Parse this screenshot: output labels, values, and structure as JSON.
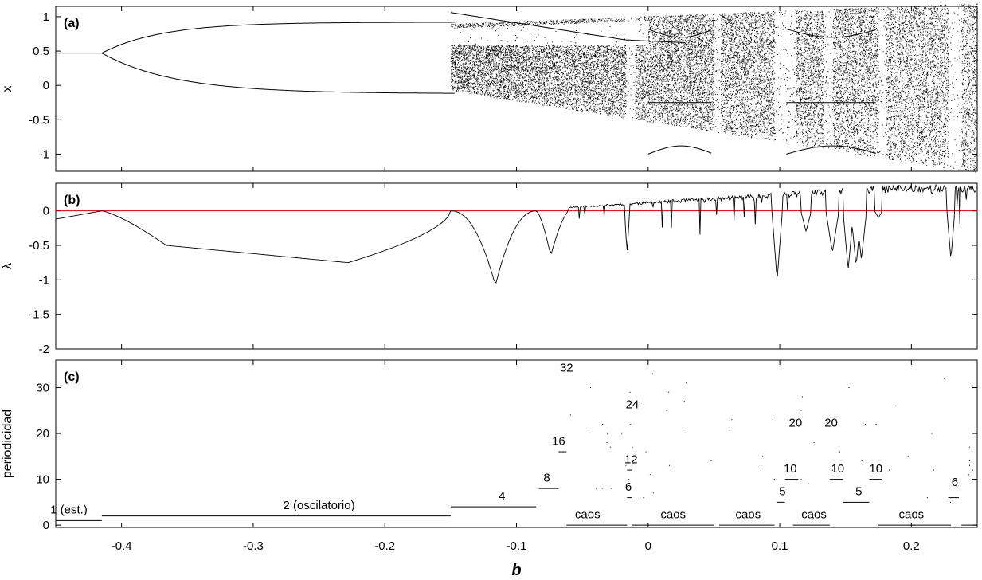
{
  "chart_data": [
    {
      "panel": "(a)",
      "type": "scatter",
      "ylabel": "x",
      "xlim": [
        -0.45,
        0.25
      ],
      "ylim": [
        -1.25,
        1.15
      ],
      "yticks": [
        1,
        0.5,
        0,
        -0.5,
        -1
      ],
      "ytick_labels": [
        "1",
        "0.5",
        "0",
        "-0.5",
        "-1"
      ],
      "grid": false,
      "description_series": [
        {
          "name": "fixed point",
          "x": [
            -0.45,
            -0.415
          ],
          "y": [
            0.47,
            0.47
          ]
        },
        {
          "name": "period-2 upper branch",
          "x": [
            -0.415,
            -0.35,
            -0.25,
            -0.15
          ],
          "y": [
            0.47,
            0.76,
            0.83,
            0.86
          ]
        },
        {
          "name": "period-2 lower branch",
          "x": [
            -0.415,
            -0.35,
            -0.25,
            -0.15
          ],
          "y": [
            0.47,
            0.18,
            0.05,
            -0.05
          ]
        }
      ]
    },
    {
      "panel": "(b)",
      "type": "line",
      "ylabel": "λ",
      "xlim": [
        -0.45,
        0.25
      ],
      "ylim": [
        -2,
        0.4
      ],
      "yticks": [
        0,
        -0.5,
        -1,
        -1.5,
        -2
      ],
      "ytick_labels": [
        "0",
        "-0.5",
        "-1",
        "-1.5",
        "-2"
      ],
      "reference_line": {
        "y": 0,
        "color": "#cc0000"
      },
      "series": [
        {
          "name": "",
          "x": [
            -0.45,
            -0.43,
            -0.415,
            -0.39,
            -0.366,
            -0.3,
            -0.228,
            -0.2,
            -0.15,
            -0.13,
            -0.118,
            -0.116,
            -0.114,
            -0.1,
            -0.085,
            -0.077,
            -0.074,
            -0.07,
            -0.06,
            -0.04,
            -0.02,
            0.0,
            0.04,
            0.08,
            0.096,
            0.098,
            0.1,
            0.12,
            0.14,
            0.16,
            0.17,
            0.2,
            0.25
          ],
          "y": [
            -0.12,
            -0.05,
            0.0,
            -0.22,
            -0.5,
            -0.6,
            -0.75,
            -0.4,
            0.0,
            -0.35,
            -0.9,
            -1.08,
            -0.9,
            -0.2,
            0.0,
            -0.4,
            -0.65,
            -0.1,
            0.1,
            0.15,
            0.2,
            0.28,
            0.3,
            0.34,
            0.2,
            -1.0,
            0.0,
            0.1,
            -0.6,
            -0.8,
            0.0,
            0.35,
            0.4
          ]
        }
      ]
    },
    {
      "panel": "(c)",
      "type": "scatter",
      "ylabel": "periodicidad",
      "xlabel": "b",
      "xlim": [
        -0.45,
        0.25
      ],
      "ylim": [
        -0.5,
        36
      ],
      "yticks": [
        0,
        10,
        20,
        30
      ],
      "ytick_labels": [
        "0",
        "10",
        "20",
        "30"
      ],
      "xticks": [
        -0.4,
        -0.3,
        -0.2,
        -0.1,
        0,
        0.1,
        0.2
      ],
      "xtick_labels": [
        "-0.4",
        "-0.3",
        "-0.2",
        "-0.1",
        "0",
        "0.1",
        "0.2"
      ],
      "segments": [
        {
          "y": 1,
          "x0": -0.45,
          "x1": -0.415
        },
        {
          "y": 2,
          "x0": -0.415,
          "x1": -0.15
        },
        {
          "y": 4,
          "x0": -0.15,
          "x1": -0.085
        },
        {
          "y": 8,
          "x0": -0.083,
          "x1": -0.068
        },
        {
          "y": 16,
          "x0": -0.068,
          "x1": -0.062
        },
        {
          "y": 0,
          "x0": -0.062,
          "x1": -0.016
        },
        {
          "y": 0,
          "x0": -0.012,
          "x1": 0.05
        },
        {
          "y": 0,
          "x0": 0.054,
          "x1": 0.096
        },
        {
          "y": 0,
          "x0": 0.11,
          "x1": 0.138
        },
        {
          "y": 0,
          "x0": 0.175,
          "x1": 0.23
        },
        {
          "y": 0,
          "x0": 0.238,
          "x1": 0.25
        },
        {
          "y": 5,
          "x0": 0.098,
          "x1": 0.104
        },
        {
          "y": 10,
          "x0": 0.104,
          "x1": 0.114
        },
        {
          "y": 5,
          "x0": 0.148,
          "x1": 0.168
        },
        {
          "y": 10,
          "x0": 0.138,
          "x1": 0.148
        },
        {
          "y": 10,
          "x0": 0.168,
          "x1": 0.178
        },
        {
          "y": 6,
          "x0": 0.228,
          "x1": 0.236
        },
        {
          "y": 6,
          "x0": -0.016,
          "x1": -0.012
        },
        {
          "y": 12,
          "x0": -0.016,
          "x1": -0.012
        }
      ],
      "annotations": [
        {
          "text": "1 (est.)",
          "x": -0.44,
          "y": 2.5
        },
        {
          "text": "2 (oscilatorio)",
          "x": -0.25,
          "y": 3.5
        },
        {
          "text": "4",
          "x": -0.111,
          "y": 5.5
        },
        {
          "text": "8",
          "x": -0.077,
          "y": 9.5
        },
        {
          "text": "16",
          "x": -0.068,
          "y": 17.5
        },
        {
          "text": "32",
          "x": -0.062,
          "y": 33.5
        },
        {
          "text": "24",
          "x": -0.012,
          "y": 25.5
        },
        {
          "text": "12",
          "x": -0.013,
          "y": 13.5
        },
        {
          "text": "6",
          "x": -0.015,
          "y": 7.5
        },
        {
          "text": "20",
          "x": 0.112,
          "y": 21.5
        },
        {
          "text": "20",
          "x": 0.139,
          "y": 21.5
        },
        {
          "text": "10",
          "x": 0.108,
          "y": 11.5
        },
        {
          "text": "10",
          "x": 0.144,
          "y": 11.5
        },
        {
          "text": "10",
          "x": 0.173,
          "y": 11.5
        },
        {
          "text": "5",
          "x": 0.102,
          "y": 6.5
        },
        {
          "text": "5",
          "x": 0.16,
          "y": 6.5
        },
        {
          "text": "6",
          "x": 0.233,
          "y": 8.5
        },
        {
          "text": "caos",
          "x": -0.046,
          "y": 1.5
        },
        {
          "text": "caos",
          "x": 0.019,
          "y": 1.5
        },
        {
          "text": "caos",
          "x": 0.076,
          "y": 1.5
        },
        {
          "text": "caos",
          "x": 0.126,
          "y": 1.5
        },
        {
          "text": "caos",
          "x": 0.2,
          "y": 1.5
        }
      ]
    }
  ]
}
